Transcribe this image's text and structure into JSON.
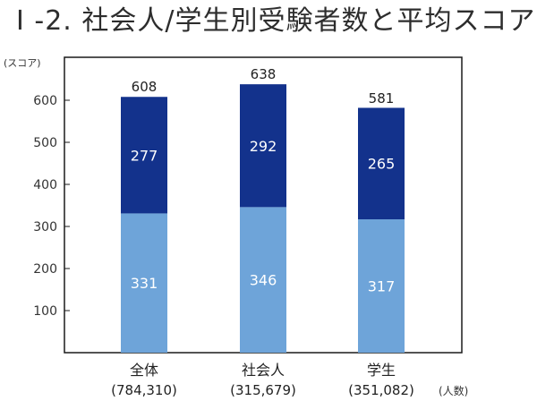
{
  "title": "I -2. 社会人/学生別受験者数と平均スコア",
  "chart_data": {
    "type": "bar",
    "stacked": true,
    "title": "I -2. 社会人/学生別受験者数と平均スコア",
    "ylabel": "(スコア)",
    "xunit_label": "(人数)",
    "ylim": [
      0,
      700
    ],
    "yticks": [
      100,
      200,
      300,
      400,
      500,
      600
    ],
    "categories": [
      "全体",
      "社会人",
      "学生"
    ],
    "category_sublabels": [
      "(784,310)",
      "(315,679)",
      "(351,082)"
    ],
    "series": [
      {
        "values": [
          331,
          346,
          317
        ],
        "color": "#6ea4d9"
      },
      {
        "values": [
          277,
          292,
          265
        ],
        "color": "#13328c"
      }
    ],
    "totals": [
      608,
      638,
      581
    ],
    "grid": false,
    "legend": "none"
  }
}
